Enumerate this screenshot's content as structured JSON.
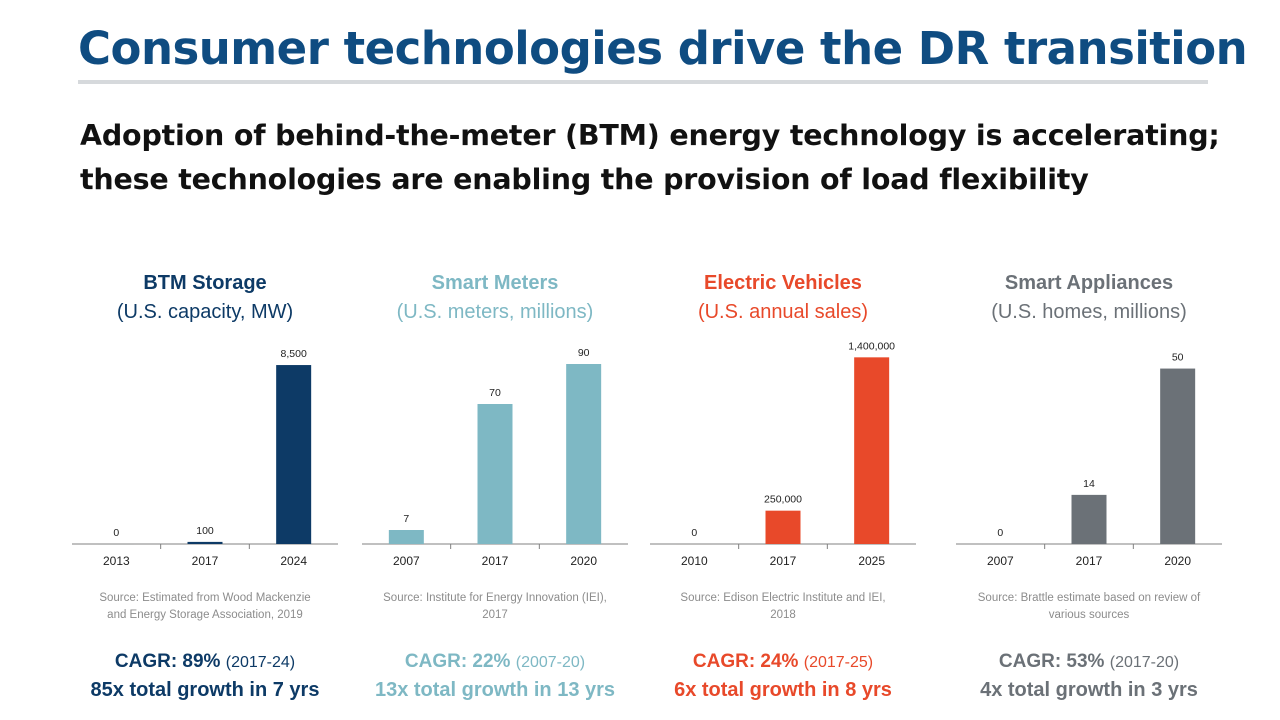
{
  "slide": {
    "title": "Consumer technologies drive the DR transition",
    "subtitle_lines": [
      "Adoption of behind-the-meter (BTM) energy technology is accelerating;",
      "these technologies are enabling the provision of load flexibility"
    ]
  },
  "colors": {
    "title": "#0f4c81",
    "btm_storage": "#0d3a66",
    "smart_meters": "#7eb8c4",
    "electric_vehicles": "#e8492a",
    "smart_appliances": "#6b7177",
    "axis": "#808080",
    "source_text": "#8c8c8c"
  },
  "panels": [
    {
      "title": "BTM Storage",
      "unit": "(U.S. capacity, MW)",
      "source_lines": [
        "Source: Estimated from Wood Mackenzie",
        "and Energy Storage Association, 2019"
      ],
      "cagr_label": "CAGR: 89%",
      "cagr_period": "(2017-24)",
      "growth": "85x total growth in 7 yrs"
    },
    {
      "title": "Smart Meters",
      "unit": "(U.S. meters, millions)",
      "source_lines": [
        "Source: Institute for Energy Innovation (IEI),",
        "2017"
      ],
      "cagr_label": "CAGR: 22%",
      "cagr_period": "(2007-20)",
      "growth": "13x total growth in 13 yrs"
    },
    {
      "title": "Electric Vehicles",
      "unit": "(U.S. annual sales)",
      "source_lines": [
        "Source: Edison Electric Institute and IEI,",
        "2018"
      ],
      "cagr_label": "CAGR: 24%",
      "cagr_period": "(2017-25)",
      "growth": "6x total growth in 8 yrs"
    },
    {
      "title": "Smart Appliances",
      "unit": "(U.S. homes, millions)",
      "source_lines": [
        "Source: Brattle estimate based on review of",
        "various sources"
      ],
      "cagr_label": "CAGR: 53%",
      "cagr_period": "(2017-20)",
      "growth": "4x total growth in 3 yrs"
    }
  ],
  "chart_data": [
    {
      "type": "bar",
      "title": "BTM Storage",
      "subtitle": "(U.S. capacity, MW)",
      "categories": [
        "2013",
        "2017",
        "2024"
      ],
      "values": [
        0,
        100,
        8500
      ],
      "labels": [
        "0",
        "100",
        "8,500"
      ],
      "ylim": [
        0,
        9500
      ],
      "grid": false,
      "color": "#0d3a66"
    },
    {
      "type": "bar",
      "title": "Smart Meters",
      "subtitle": "(U.S. meters, millions)",
      "categories": [
        "2007",
        "2017",
        "2020"
      ],
      "values": [
        7,
        70,
        90
      ],
      "labels": [
        "7",
        "70",
        "90"
      ],
      "ylim": [
        0,
        100
      ],
      "grid": false,
      "color": "#7eb8c4"
    },
    {
      "type": "bar",
      "title": "Electric Vehicles",
      "subtitle": "(U.S. annual sales)",
      "categories": [
        "2010",
        "2017",
        "2025"
      ],
      "values": [
        0,
        250000,
        1400000
      ],
      "labels": [
        "0",
        "250,000",
        "1,400,000"
      ],
      "ylim": [
        0,
        1500000
      ],
      "grid": false,
      "color": "#e8492a"
    },
    {
      "type": "bar",
      "title": "Smart Appliances",
      "subtitle": "(U.S. homes, millions)",
      "categories": [
        "2007",
        "2017",
        "2020"
      ],
      "values": [
        0,
        14,
        50
      ],
      "labels": [
        "0",
        "14",
        "50"
      ],
      "ylim": [
        0,
        57
      ],
      "grid": false,
      "color": "#6b7177"
    }
  ]
}
